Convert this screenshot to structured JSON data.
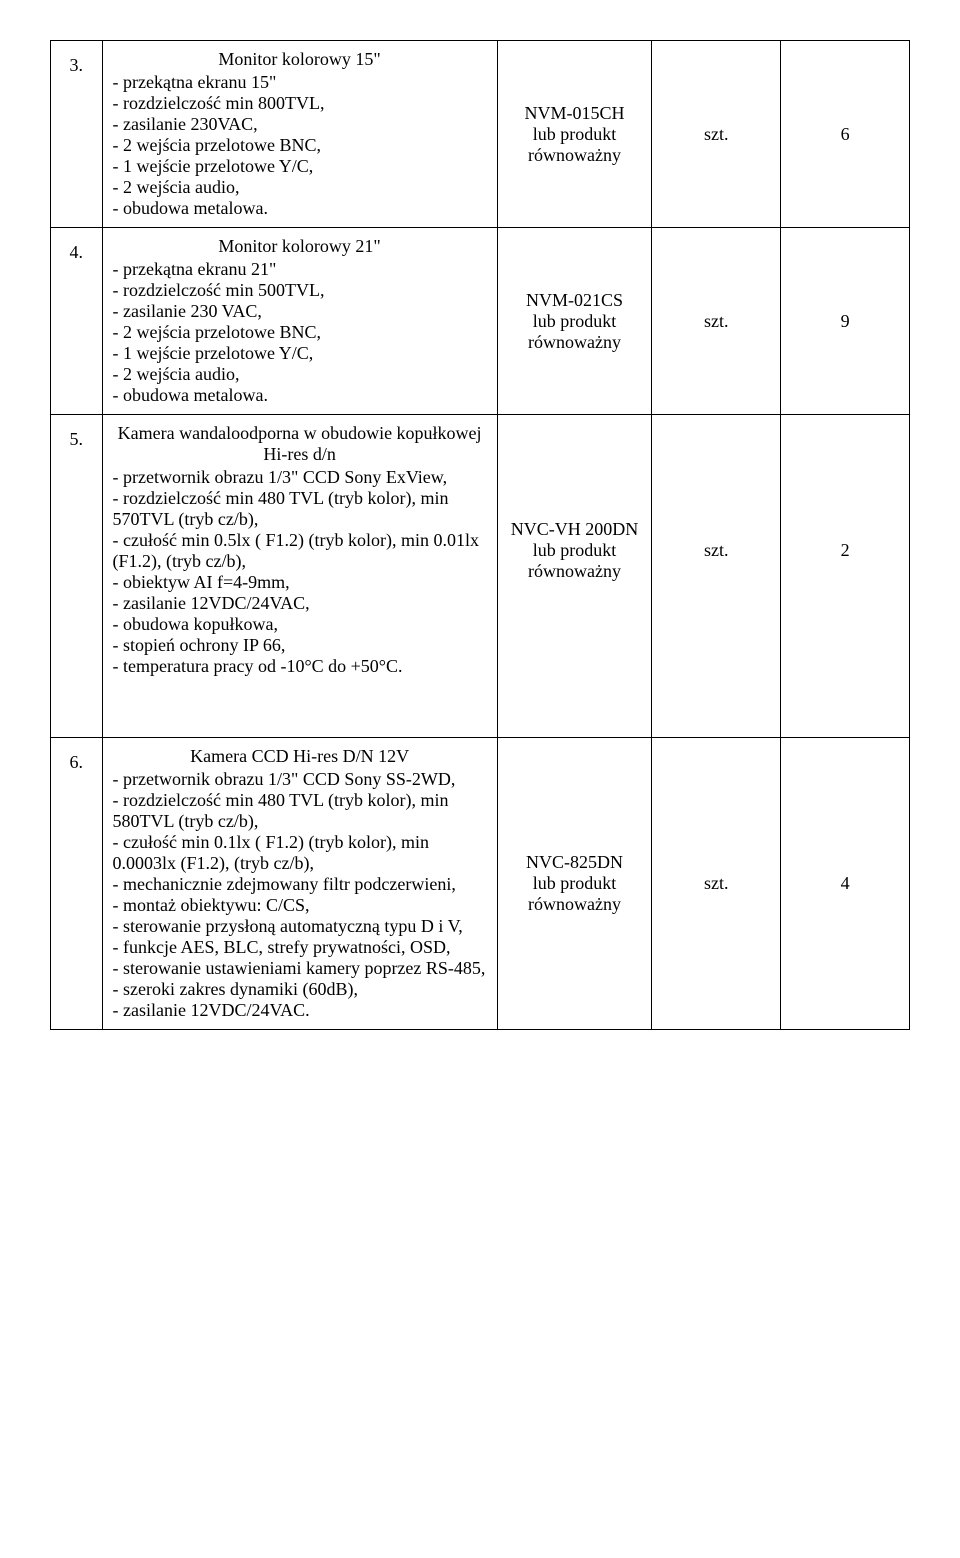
{
  "unit_label": "szt.",
  "code_suffix": "lub produkt równoważny",
  "rows": [
    {
      "num": "3.",
      "title": "Monitor kolorowy 15\"",
      "specs": [
        "- przekątna ekranu 15\"",
        "- rozdzielczość min 800TVL,",
        "- zasilanie 230VAC,",
        "- 2 wejścia przelotowe BNC,",
        "- 1 wejście przelotowe Y/C,",
        "- 2 wejścia audio,",
        "- obudowa metalowa."
      ],
      "code": "NVM-015CH",
      "qty": "6"
    },
    {
      "num": "4.",
      "title": "Monitor kolorowy 21\"",
      "specs": [
        "- przekątna ekranu 21\"",
        "- rozdzielczość min 500TVL,",
        "- zasilanie 230 VAC,",
        "- 2 wejścia przelotowe BNC,",
        "- 1 wejście przelotowe Y/C,",
        "- 2 wejścia audio,",
        "- obudowa metalowa."
      ],
      "code": "NVM-021CS",
      "qty": "9"
    },
    {
      "num": "5.",
      "title": "Kamera wandaloodporna w obudowie kopułkowej  Hi-res d/n",
      "specs": [
        "- przetwornik obrazu 1/3\" CCD Sony ExView,",
        "- rozdzielczość min 480 TVL (tryb kolor), min 570TVL (tryb cz/b),",
        "- czułość min 0.5lx ( F1.2) (tryb kolor), min 0.01lx (F1.2), (tryb cz/b),",
        "- obiektyw AI f=4-9mm,",
        "- zasilanie 12VDC/24VAC,",
        "- obudowa kopułkowa,",
        "- stopień ochrony IP 66,",
        "- temperatura pracy od -10°C do +50°C."
      ],
      "code": "NVC-VH 200DN",
      "qty": "2"
    },
    {
      "num": "6.",
      "title": "Kamera CCD Hi-res D/N 12V",
      "specs": [
        "- przetwornik obrazu 1/3\" CCD Sony SS-2WD,",
        "- rozdzielczość min 480 TVL (tryb kolor), min 580TVL (tryb cz/b),",
        "- czułość min 0.1lx ( F1.2) (tryb kolor), min 0.0003lx (F1.2), (tryb cz/b),",
        "- mechanicznie zdejmowany filtr podczerwieni,",
        "- montaż obiektywu: C/CS,",
        "- sterowanie przysłoną automatyczną typu D i V,",
        "- funkcje AES, BLC, strefy prywatności, OSD,",
        "- sterowanie ustawieniami kamery poprzez RS-485,",
        "- szeroki zakres dynamiki (60dB),",
        "- zasilanie 12VDC/24VAC."
      ],
      "code": "NVC-825DN",
      "qty": "4"
    }
  ]
}
